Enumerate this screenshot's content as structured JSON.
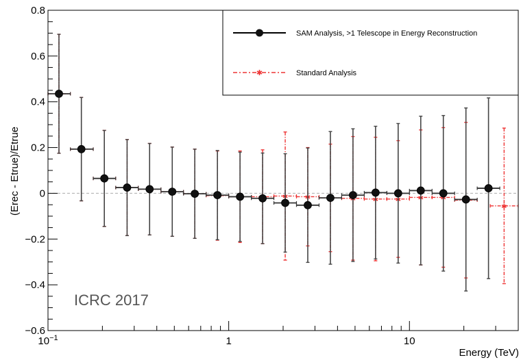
{
  "chart_data": {
    "type": "scatter",
    "title": "",
    "xlabel": "Energy (TeV)",
    "ylabel": "(Erec - Etrue)/Etrue",
    "x_scale": "log",
    "xlim": [
      0.1,
      40
    ],
    "ylim": [
      -0.6,
      0.8
    ],
    "x_tick_labels": [
      {
        "value": 0.1,
        "base": "10",
        "exp": "−1"
      },
      {
        "value": 1,
        "base": "1",
        "exp": ""
      },
      {
        "value": 10,
        "base": "10",
        "exp": ""
      }
    ],
    "y_ticks": [
      -0.6,
      -0.4,
      -0.2,
      0,
      0.2,
      0.4,
      0.6,
      0.8
    ],
    "y_tick_labels": [
      "−0.6",
      "−0.4",
      "−0.2",
      "0",
      "0.2",
      "0.4",
      "0.6",
      "0.8"
    ],
    "reference_line": {
      "y": 0,
      "style": "dashed",
      "color": "#aaaaaa"
    },
    "legend": {
      "placement": "top-right"
    },
    "annotation": "ICRC 2017",
    "series": [
      {
        "name": "SAM Analysis, >1 Telescope in Energy Reconstruction",
        "color": "#000000",
        "marker_fill": "#111111",
        "points": [
          {
            "x": 0.115,
            "xlo": 0.1,
            "xhi": 0.133,
            "y": 0.435,
            "err": 0.26
          },
          {
            "x": 0.153,
            "xlo": 0.133,
            "xhi": 0.178,
            "y": 0.193,
            "err": 0.226
          },
          {
            "x": 0.205,
            "xlo": 0.178,
            "xhi": 0.237,
            "y": 0.065,
            "err": 0.21
          },
          {
            "x": 0.274,
            "xlo": 0.237,
            "xhi": 0.316,
            "y": 0.025,
            "err": 0.21
          },
          {
            "x": 0.365,
            "xlo": 0.316,
            "xhi": 0.422,
            "y": 0.018,
            "err": 0.2
          },
          {
            "x": 0.487,
            "xlo": 0.422,
            "xhi": 0.562,
            "y": 0.007,
            "err": 0.195
          },
          {
            "x": 0.649,
            "xlo": 0.562,
            "xhi": 0.75,
            "y": -0.002,
            "err": 0.195
          },
          {
            "x": 0.866,
            "xlo": 0.75,
            "xhi": 1.0,
            "y": -0.008,
            "err": 0.195
          },
          {
            "x": 1.155,
            "xlo": 1.0,
            "xhi": 1.334,
            "y": -0.015,
            "err": 0.195
          },
          {
            "x": 1.54,
            "xlo": 1.334,
            "xhi": 1.778,
            "y": -0.022,
            "err": 0.198
          },
          {
            "x": 2.054,
            "xlo": 1.778,
            "xhi": 2.371,
            "y": -0.042,
            "err": 0.215
          },
          {
            "x": 2.738,
            "xlo": 2.371,
            "xhi": 3.162,
            "y": -0.052,
            "err": 0.25
          },
          {
            "x": 3.652,
            "xlo": 3.162,
            "xhi": 4.217,
            "y": -0.02,
            "err": 0.29
          },
          {
            "x": 4.87,
            "xlo": 4.217,
            "xhi": 5.623,
            "y": -0.008,
            "err": 0.29
          },
          {
            "x": 6.494,
            "xlo": 5.623,
            "xhi": 7.499,
            "y": 0.003,
            "err": 0.29
          },
          {
            "x": 8.66,
            "xlo": 7.499,
            "xhi": 10.0,
            "y": 0.0,
            "err": 0.305
          },
          {
            "x": 11.55,
            "xlo": 10.0,
            "xhi": 13.34,
            "y": 0.012,
            "err": 0.325
          },
          {
            "x": 15.4,
            "xlo": 13.34,
            "xhi": 17.78,
            "y": 0.0,
            "err": 0.34
          },
          {
            "x": 20.54,
            "xlo": 17.78,
            "xhi": 23.71,
            "y": -0.027,
            "err": 0.4
          },
          {
            "x": 27.38,
            "xlo": 23.71,
            "xhi": 31.62,
            "y": 0.022,
            "err": 0.395
          }
        ]
      },
      {
        "name": "Standard Analysis",
        "color": "#ee3333",
        "points": [
          {
            "x": 0.115,
            "xlo": 0.1,
            "xhi": 0.133,
            "y": 0.435,
            "err": 0.26
          },
          {
            "x": 0.153,
            "xlo": 0.133,
            "xhi": 0.178,
            "y": 0.193,
            "err": 0.226
          },
          {
            "x": 0.205,
            "xlo": 0.178,
            "xhi": 0.237,
            "y": 0.065,
            "err": 0.21
          },
          {
            "x": 0.274,
            "xlo": 0.237,
            "xhi": 0.316,
            "y": 0.025,
            "err": 0.21
          },
          {
            "x": 0.365,
            "xlo": 0.316,
            "xhi": 0.422,
            "y": 0.018,
            "err": 0.2
          },
          {
            "x": 0.487,
            "xlo": 0.422,
            "xhi": 0.562,
            "y": 0.007,
            "err": 0.195
          },
          {
            "x": 0.649,
            "xlo": 0.562,
            "xhi": 0.75,
            "y": -0.002,
            "err": 0.195
          },
          {
            "x": 0.866,
            "xlo": 0.75,
            "xhi": 1.0,
            "y": -0.01,
            "err": 0.195
          },
          {
            "x": 1.155,
            "xlo": 1.0,
            "xhi": 1.334,
            "y": -0.015,
            "err": 0.2
          },
          {
            "x": 1.54,
            "xlo": 1.334,
            "xhi": 1.778,
            "y": -0.015,
            "err": 0.205
          },
          {
            "x": 2.054,
            "xlo": 1.778,
            "xhi": 2.371,
            "y": -0.012,
            "err": 0.28
          },
          {
            "x": 2.738,
            "xlo": 2.371,
            "xhi": 3.162,
            "y": -0.015,
            "err": 0.215
          },
          {
            "x": 3.652,
            "xlo": 3.162,
            "xhi": 4.217,
            "y": -0.02,
            "err": 0.235
          },
          {
            "x": 4.87,
            "xlo": 4.217,
            "xhi": 5.623,
            "y": -0.022,
            "err": 0.27
          },
          {
            "x": 6.494,
            "xlo": 5.623,
            "xhi": 7.499,
            "y": -0.025,
            "err": 0.27
          },
          {
            "x": 8.66,
            "xlo": 7.499,
            "xhi": 10.0,
            "y": -0.025,
            "err": 0.255
          },
          {
            "x": 11.55,
            "xlo": 10.0,
            "xhi": 13.34,
            "y": -0.018,
            "err": 0.295
          },
          {
            "x": 15.4,
            "xlo": 13.34,
            "xhi": 17.78,
            "y": -0.018,
            "err": 0.305
          },
          {
            "x": 20.54,
            "xlo": 17.78,
            "xhi": 23.71,
            "y": -0.03,
            "err": 0.34
          },
          {
            "x": 33.4,
            "xlo": 28.0,
            "xhi": 40.0,
            "y": -0.055,
            "err": 0.34
          }
        ]
      }
    ]
  }
}
